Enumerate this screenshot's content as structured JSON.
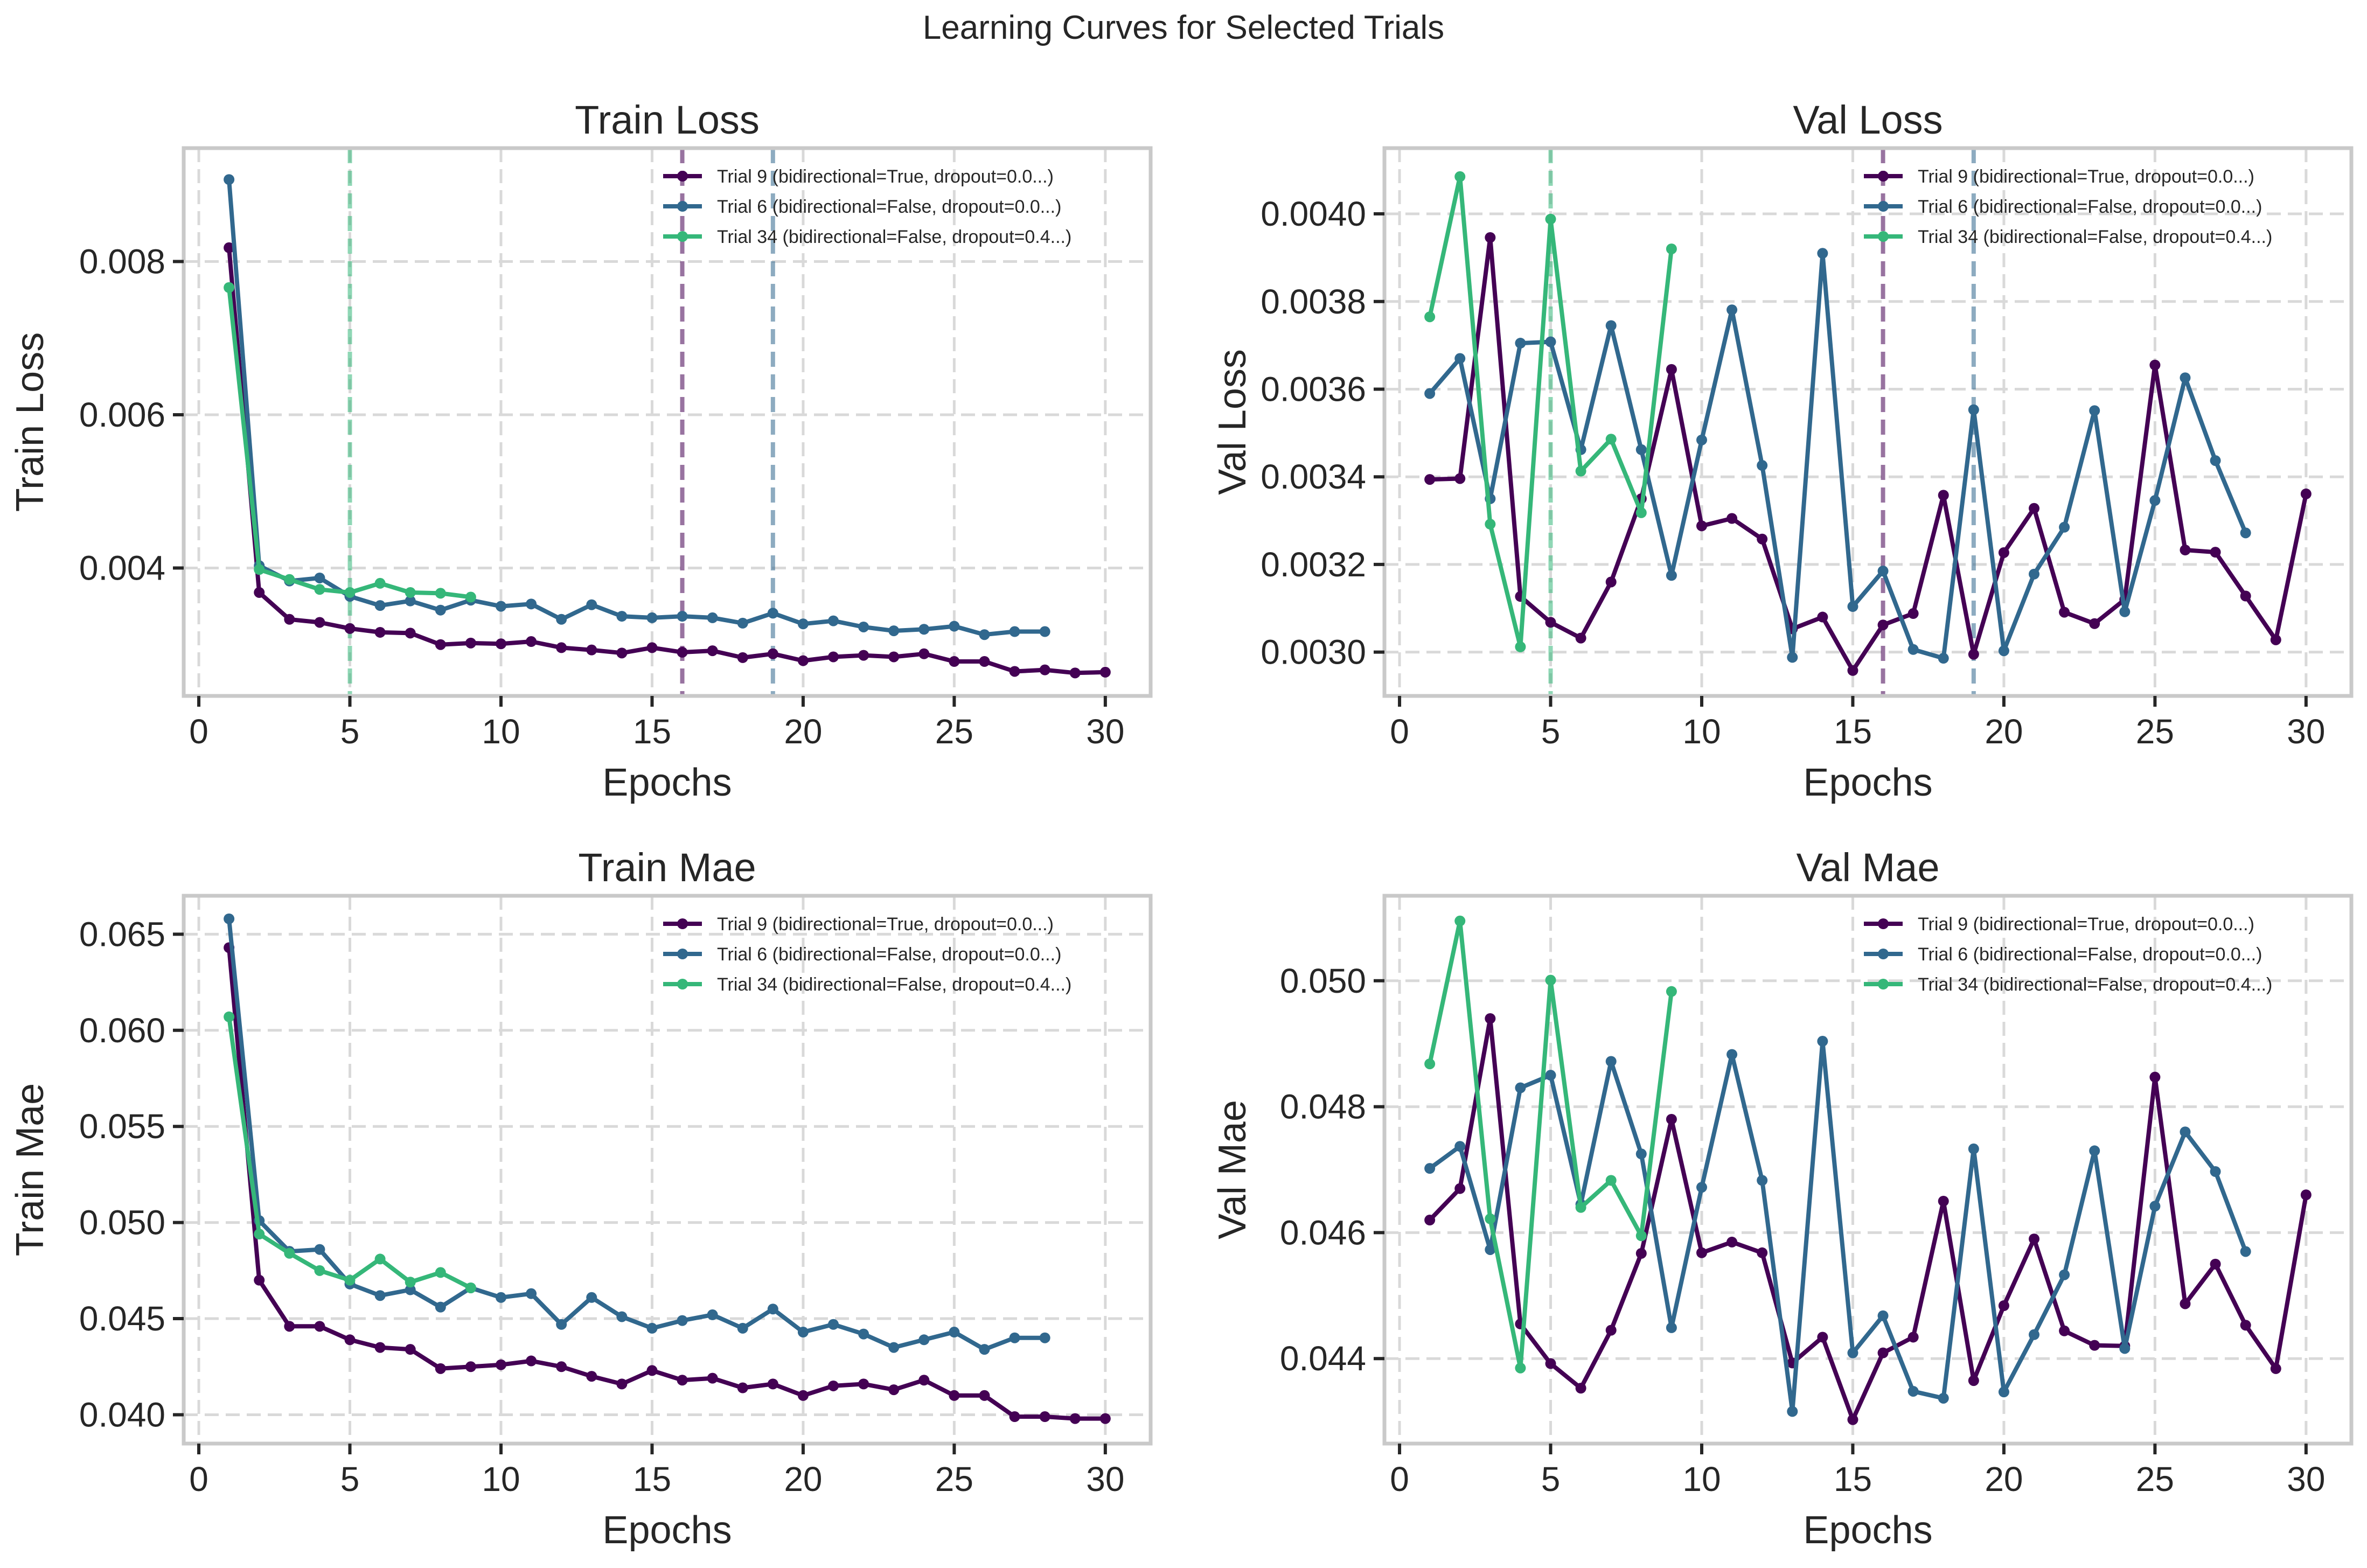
{
  "figure": {
    "title": "Learning Curves for Selected Trials"
  },
  "colors": {
    "trial9": "#440154",
    "trial6": "#31688e",
    "trial34": "#35b779"
  },
  "chart_data": [
    {
      "type": "line",
      "title": "Train Loss",
      "xlabel": "Epochs",
      "ylabel": "Train Loss",
      "xlim": [
        -0.5,
        31.5
      ],
      "ylim": [
        0.00233,
        0.00948
      ],
      "xticks": [
        0,
        5,
        10,
        15,
        20,
        25,
        30
      ],
      "xtick_labels": [
        "0",
        "5",
        "10",
        "15",
        "20",
        "25",
        "30"
      ],
      "yticks": [
        0.004,
        0.006,
        0.008
      ],
      "ytick_labels": [
        "0.004",
        "0.006",
        "0.008"
      ],
      "grid": true,
      "legend_position": "upper-right",
      "vlines": [
        {
          "x": 5,
          "color": "#35b779"
        },
        {
          "x": 16,
          "color": "#440154"
        },
        {
          "x": 19,
          "color": "#31688e"
        }
      ],
      "series": [
        {
          "name": "Trial 9 (bidirectional=True, dropout=0.0...)",
          "color": "#440154",
          "x": [
            1,
            2,
            3,
            4,
            5,
            6,
            7,
            8,
            9,
            10,
            11,
            12,
            13,
            14,
            15,
            16,
            17,
            18,
            19,
            20,
            21,
            22,
            23,
            24,
            25,
            26,
            27,
            28,
            29,
            30
          ],
          "y": [
            0.00818,
            0.00368,
            0.00333,
            0.00329,
            0.00321,
            0.00316,
            0.00315,
            0.003,
            0.00302,
            0.00301,
            0.00304,
            0.00296,
            0.00293,
            0.00289,
            0.00296,
            0.0029,
            0.00292,
            0.00283,
            0.00288,
            0.00279,
            0.00284,
            0.00286,
            0.00284,
            0.00288,
            0.00278,
            0.00278,
            0.00265,
            0.00267,
            0.00263,
            0.00264
          ]
        },
        {
          "name": "Trial 6 (bidirectional=False, dropout=0.0...)",
          "color": "#31688e",
          "x": [
            1,
            2,
            3,
            4,
            5,
            6,
            7,
            8,
            9,
            10,
            11,
            12,
            13,
            14,
            15,
            16,
            17,
            18,
            19,
            20,
            21,
            22,
            23,
            24,
            25,
            26,
            27,
            28
          ],
          "y": [
            0.00907,
            0.00403,
            0.00383,
            0.00387,
            0.00363,
            0.00351,
            0.00357,
            0.00345,
            0.00358,
            0.0035,
            0.00353,
            0.00333,
            0.00352,
            0.00337,
            0.00335,
            0.00337,
            0.00335,
            0.00328,
            0.00341,
            0.00327,
            0.00331,
            0.00323,
            0.00318,
            0.0032,
            0.00324,
            0.00313,
            0.00317,
            0.00317
          ]
        },
        {
          "name": "Trial 34 (bidirectional=False, dropout=0.4...)",
          "color": "#35b779",
          "x": [
            1,
            2,
            3,
            4,
            5,
            6,
            7,
            8,
            9
          ],
          "y": [
            0.00766,
            0.00398,
            0.00385,
            0.00372,
            0.00368,
            0.0038,
            0.00368,
            0.00367,
            0.00362
          ]
        }
      ]
    },
    {
      "type": "line",
      "title": "Val Loss",
      "xlabel": "Epochs",
      "ylabel": "Val Loss",
      "xlim": [
        -0.5,
        31.5
      ],
      "ylim": [
        0.0029,
        0.00415
      ],
      "xticks": [
        0,
        5,
        10,
        15,
        20,
        25,
        30
      ],
      "xtick_labels": [
        "0",
        "5",
        "10",
        "15",
        "20",
        "25",
        "30"
      ],
      "yticks": [
        0.003,
        0.0032,
        0.0034,
        0.0036,
        0.0038,
        0.004
      ],
      "ytick_labels": [
        "0.0030",
        "0.0032",
        "0.0034",
        "0.0036",
        "0.0038",
        "0.0040"
      ],
      "grid": true,
      "legend_position": "upper-right",
      "vlines": [
        {
          "x": 5,
          "color": "#35b779"
        },
        {
          "x": 16,
          "color": "#440154"
        },
        {
          "x": 19,
          "color": "#31688e"
        }
      ],
      "series": [
        {
          "name": "Trial 9 (bidirectional=True, dropout=0.0...)",
          "color": "#440154",
          "x": [
            1,
            2,
            3,
            4,
            5,
            6,
            7,
            8,
            9,
            10,
            11,
            12,
            13,
            14,
            15,
            16,
            17,
            18,
            19,
            20,
            21,
            22,
            23,
            24,
            25,
            26,
            27,
            28,
            29,
            30
          ],
          "y": [
            0.003394,
            0.003396,
            0.003946,
            0.003127,
            0.003068,
            0.003032,
            0.00316,
            0.00335,
            0.003645,
            0.003288,
            0.003305,
            0.003258,
            0.003053,
            0.00308,
            0.002958,
            0.003062,
            0.003088,
            0.003358,
            0.002995,
            0.003227,
            0.003328,
            0.003091,
            0.003065,
            0.00312,
            0.003655,
            0.003233,
            0.003228,
            0.003128,
            0.003028,
            0.003361
          ]
        },
        {
          "name": "Trial 6 (bidirectional=False, dropout=0.0...)",
          "color": "#31688e",
          "x": [
            1,
            2,
            3,
            4,
            5,
            6,
            7,
            8,
            9,
            10,
            11,
            12,
            13,
            14,
            15,
            16,
            17,
            18,
            19,
            20,
            21,
            22,
            23,
            24,
            25,
            26,
            27,
            28
          ],
          "y": [
            0.00359,
            0.00367,
            0.00335,
            0.003705,
            0.003708,
            0.003462,
            0.003745,
            0.003462,
            0.003175,
            0.003484,
            0.003781,
            0.003426,
            0.002988,
            0.00391,
            0.003104,
            0.003185,
            0.003006,
            0.002986,
            0.003553,
            0.003003,
            0.003178,
            0.003285,
            0.003551,
            0.003092,
            0.003346,
            0.003626,
            0.003437,
            0.003272
          ]
        },
        {
          "name": "Trial 34 (bidirectional=False, dropout=0.4...)",
          "color": "#35b779",
          "x": [
            1,
            2,
            3,
            4,
            5,
            6,
            7,
            8,
            9
          ],
          "y": [
            0.003765,
            0.004085,
            0.003292,
            0.003012,
            0.003988,
            0.003413,
            0.003486,
            0.003318,
            0.00392
          ]
        }
      ]
    },
    {
      "type": "line",
      "title": "Train Mae",
      "xlabel": "Epochs",
      "ylabel": "Train Mae",
      "xlim": [
        -0.5,
        31.5
      ],
      "ylim": [
        0.0385,
        0.067
      ],
      "xticks": [
        0,
        5,
        10,
        15,
        20,
        25,
        30
      ],
      "xtick_labels": [
        "0",
        "5",
        "10",
        "15",
        "20",
        "25",
        "30"
      ],
      "yticks": [
        0.04,
        0.045,
        0.05,
        0.055,
        0.06,
        0.065
      ],
      "ytick_labels": [
        "0.040",
        "0.045",
        "0.050",
        "0.055",
        "0.060",
        "0.065"
      ],
      "grid": true,
      "legend_position": "upper-right",
      "vlines": [],
      "series": [
        {
          "name": "Trial 9 (bidirectional=True, dropout=0.0...)",
          "color": "#440154",
          "x": [
            1,
            2,
            3,
            4,
            5,
            6,
            7,
            8,
            9,
            10,
            11,
            12,
            13,
            14,
            15,
            16,
            17,
            18,
            19,
            20,
            21,
            22,
            23,
            24,
            25,
            26,
            27,
            28,
            29,
            30
          ],
          "y": [
            0.0643,
            0.047,
            0.0446,
            0.0446,
            0.0439,
            0.0435,
            0.0434,
            0.0424,
            0.0425,
            0.0426,
            0.0428,
            0.0425,
            0.042,
            0.0416,
            0.0423,
            0.0418,
            0.0419,
            0.0414,
            0.0416,
            0.041,
            0.0415,
            0.0416,
            0.0413,
            0.0418,
            0.041,
            0.041,
            0.0399,
            0.0399,
            0.0398,
            0.0398
          ]
        },
        {
          "name": "Trial 6 (bidirectional=False, dropout=0.0...)",
          "color": "#31688e",
          "x": [
            1,
            2,
            3,
            4,
            5,
            6,
            7,
            8,
            9,
            10,
            11,
            12,
            13,
            14,
            15,
            16,
            17,
            18,
            19,
            20,
            21,
            22,
            23,
            24,
            25,
            26,
            27,
            28
          ],
          "y": [
            0.0658,
            0.0501,
            0.0485,
            0.0486,
            0.0468,
            0.0462,
            0.0465,
            0.0456,
            0.0466,
            0.0461,
            0.0463,
            0.0447,
            0.0461,
            0.0451,
            0.0445,
            0.0449,
            0.0452,
            0.0445,
            0.0455,
            0.0443,
            0.0447,
            0.0442,
            0.0435,
            0.0439,
            0.0443,
            0.0434,
            0.044,
            0.044
          ]
        },
        {
          "name": "Trial 34 (bidirectional=False, dropout=0.4...)",
          "color": "#35b779",
          "x": [
            1,
            2,
            3,
            4,
            5,
            6,
            7,
            8,
            9
          ],
          "y": [
            0.0607,
            0.0494,
            0.0484,
            0.0475,
            0.047,
            0.0481,
            0.0469,
            0.0474,
            0.0466
          ]
        }
      ]
    },
    {
      "type": "line",
      "title": "Val Mae",
      "xlabel": "Epochs",
      "ylabel": "Val Mae",
      "xlim": [
        -0.5,
        31.5
      ],
      "ylim": [
        0.04265,
        0.05135
      ],
      "xticks": [
        0,
        5,
        10,
        15,
        20,
        25,
        30
      ],
      "xtick_labels": [
        "0",
        "5",
        "10",
        "15",
        "20",
        "25",
        "30"
      ],
      "yticks": [
        0.044,
        0.046,
        0.048,
        0.05
      ],
      "ytick_labels": [
        "0.044",
        "0.046",
        "0.048",
        "0.050"
      ],
      "grid": true,
      "legend_position": "upper-right",
      "vlines": [],
      "series": [
        {
          "name": "Trial 9 (bidirectional=True, dropout=0.0...)",
          "color": "#440154",
          "x": [
            1,
            2,
            3,
            4,
            5,
            6,
            7,
            8,
            9,
            10,
            11,
            12,
            13,
            14,
            15,
            16,
            17,
            18,
            19,
            20,
            21,
            22,
            23,
            24,
            25,
            26,
            27,
            28,
            29,
            30
          ],
          "y": [
            0.0462,
            0.0467,
            0.0494,
            0.04455,
            0.04392,
            0.04353,
            0.04445,
            0.04567,
            0.0478,
            0.04568,
            0.04585,
            0.04568,
            0.04393,
            0.04434,
            0.04303,
            0.04409,
            0.04434,
            0.0465,
            0.04365,
            0.04484,
            0.0459,
            0.04444,
            0.04421,
            0.0442,
            0.04847,
            0.04487,
            0.0455,
            0.04453,
            0.04384,
            0.0466
          ]
        },
        {
          "name": "Trial 6 (bidirectional=False, dropout=0.0...)",
          "color": "#31688e",
          "x": [
            1,
            2,
            3,
            4,
            5,
            6,
            7,
            8,
            9,
            10,
            11,
            12,
            13,
            14,
            15,
            16,
            17,
            18,
            19,
            20,
            21,
            22,
            23,
            24,
            25,
            26,
            27,
            28
          ],
          "y": [
            0.04702,
            0.04737,
            0.04573,
            0.0483,
            0.0485,
            0.04645,
            0.04872,
            0.04725,
            0.04449,
            0.04672,
            0.04883,
            0.04683,
            0.04316,
            0.04904,
            0.04409,
            0.04468,
            0.04348,
            0.04337,
            0.04733,
            0.04347,
            0.04438,
            0.04533,
            0.0473,
            0.04416,
            0.04642,
            0.0476,
            0.04697,
            0.0457
          ]
        },
        {
          "name": "Trial 34 (bidirectional=False, dropout=0.4...)",
          "color": "#35b779",
          "x": [
            1,
            2,
            3,
            4,
            5,
            6,
            7,
            8,
            9
          ],
          "y": [
            0.04868,
            0.05095,
            0.04622,
            0.04385,
            0.05001,
            0.0464,
            0.04683,
            0.04595,
            0.04983
          ]
        }
      ]
    }
  ]
}
